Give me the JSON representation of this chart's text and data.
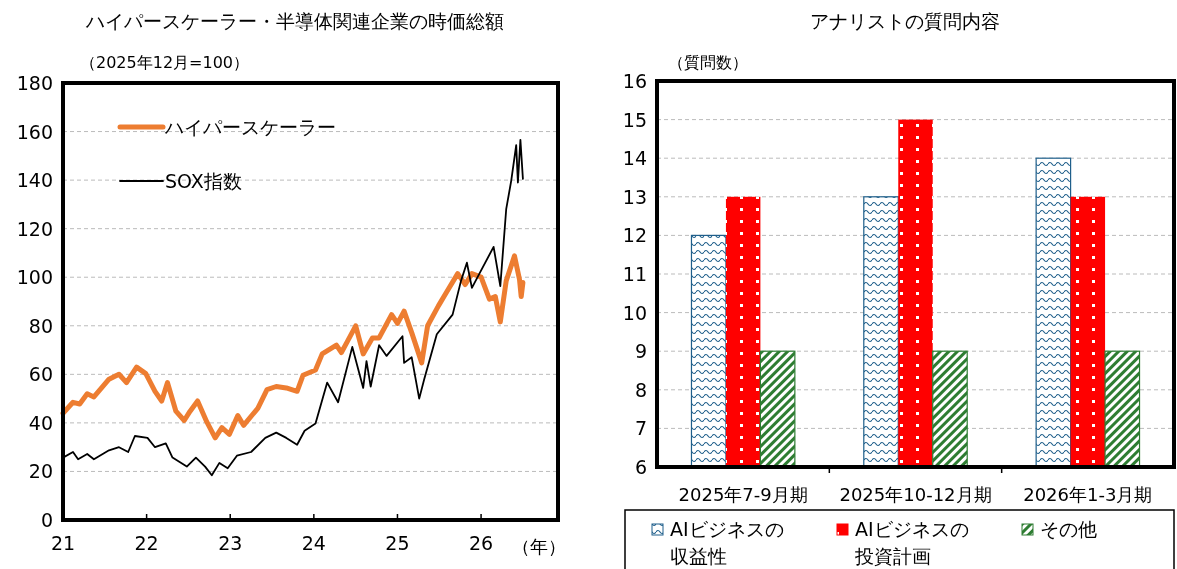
{
  "chart_data": [
    {
      "type": "line",
      "title": "ハイパースケーラー・半導体関連企業の時価総額",
      "ylabel": "（2025年12月=100）",
      "xlabel": "（年）",
      "xlim": [
        2021,
        2026.92
      ],
      "xticks": [
        {
          "value": 2021,
          "label": "21"
        },
        {
          "value": 2022,
          "label": "22"
        },
        {
          "value": 2023,
          "label": "23"
        },
        {
          "value": 2024,
          "label": "24"
        },
        {
          "value": 2025,
          "label": "25"
        },
        {
          "value": 2026,
          "label": "26"
        }
      ],
      "ylim": [
        0,
        180
      ],
      "yticks": [
        0,
        20,
        40,
        60,
        80,
        100,
        120,
        140,
        160,
        180
      ],
      "grid": "y",
      "legend": "top left",
      "series": [
        {
          "name": "ハイパースケーラー",
          "color": "#ed7d31",
          "x": [
            2021.0,
            2021.12,
            2021.2,
            2021.29,
            2021.37,
            2021.55,
            2021.67,
            2021.76,
            2021.88,
            2021.99,
            2022.1,
            2022.18,
            2022.25,
            2022.35,
            2022.45,
            2022.52,
            2022.61,
            2022.72,
            2022.82,
            2022.9,
            2022.99,
            2023.09,
            2023.16,
            2023.33,
            2023.44,
            2023.55,
            2023.67,
            2023.8,
            2023.87,
            2024.02,
            2024.1,
            2024.27,
            2024.33,
            2024.4,
            2024.5,
            2024.59,
            2024.7,
            2024.78,
            2024.93,
            2025.0,
            2025.08,
            2025.17,
            2025.29,
            2025.36,
            2025.49,
            2025.59,
            2025.72,
            2025.81,
            2025.89,
            2026.0,
            2026.1,
            2026.17,
            2026.23,
            2026.3,
            2026.4,
            2026.46,
            2026.48,
            2026.5
          ],
          "values": [
            44,
            48.5,
            47.8,
            52,
            50.7,
            58,
            60,
            56.6,
            63,
            60.3,
            53,
            49,
            56.6,
            44.8,
            41,
            44.8,
            49,
            40.4,
            33.8,
            38,
            35.3,
            43,
            39,
            46,
            53.7,
            55,
            54.4,
            53,
            59.6,
            61.8,
            68.4,
            72,
            69,
            73.5,
            80,
            68.4,
            75,
            75,
            84.6,
            81,
            86,
            77.2,
            64.7,
            80,
            88.2,
            94,
            101.5,
            97,
            101.5,
            100,
            91,
            92,
            81.6,
            98.5,
            108.8,
            99,
            92,
            97.8
          ]
        },
        {
          "name": "SOX指数",
          "color": "#000000",
          "x": [
            2021.0,
            2021.12,
            2021.18,
            2021.29,
            2021.37,
            2021.55,
            2021.67,
            2021.78,
            2021.86,
            2022.01,
            2022.1,
            2022.23,
            2022.31,
            2022.48,
            2022.59,
            2022.7,
            2022.78,
            2022.87,
            2022.97,
            2023.08,
            2023.25,
            2023.42,
            2023.55,
            2023.67,
            2023.8,
            2023.89,
            2024.02,
            2024.16,
            2024.29,
            2024.46,
            2024.59,
            2024.63,
            2024.68,
            2024.78,
            2024.87,
            2025.06,
            2025.08,
            2025.17,
            2025.26,
            2025.32,
            2025.47,
            2025.66,
            2025.76,
            2025.83,
            2025.89,
            2025.98,
            2026.15,
            2026.23,
            2026.3,
            2026.36,
            2026.42,
            2026.44,
            2026.47,
            2026.5
          ],
          "values": [
            25.7,
            28,
            25,
            27.2,
            25,
            28.7,
            30,
            28,
            34.6,
            33.8,
            30,
            31.6,
            25.7,
            22,
            25.7,
            22,
            18.4,
            23.5,
            21.3,
            26.5,
            28,
            33.8,
            36,
            33.8,
            31,
            36.8,
            39.7,
            56.6,
            48.5,
            71.3,
            54.4,
            65.4,
            55,
            72,
            67.6,
            75.7,
            64.7,
            67,
            50,
            58,
            76.5,
            84.6,
            98.5,
            106,
            95.6,
            101.5,
            112.5,
            96.3,
            128,
            139.7,
            154.4,
            139,
            156.6,
            140.5
          ]
        }
      ]
    },
    {
      "type": "bar",
      "title": "アナリストの質問内容",
      "ylabel": "（質問数）",
      "categories": [
        "2025年7-9月期",
        "2025年10-12月期",
        "2026年1-3月期"
      ],
      "ylim": [
        6,
        16
      ],
      "yticks": [
        6,
        7,
        8,
        9,
        10,
        11,
        12,
        13,
        14,
        15,
        16
      ],
      "grid": "y",
      "legend": "bottom",
      "series": [
        {
          "name": "AIビジネスの収益性",
          "color": "#1f5f8b",
          "values": [
            12,
            13,
            14
          ]
        },
        {
          "name": "AIビジネスの投資計画",
          "color": "#ff0000",
          "values": [
            13,
            15,
            13
          ]
        },
        {
          "name": "その他",
          "color": "#2e7d32",
          "values": [
            9,
            9,
            9
          ]
        }
      ]
    }
  ]
}
